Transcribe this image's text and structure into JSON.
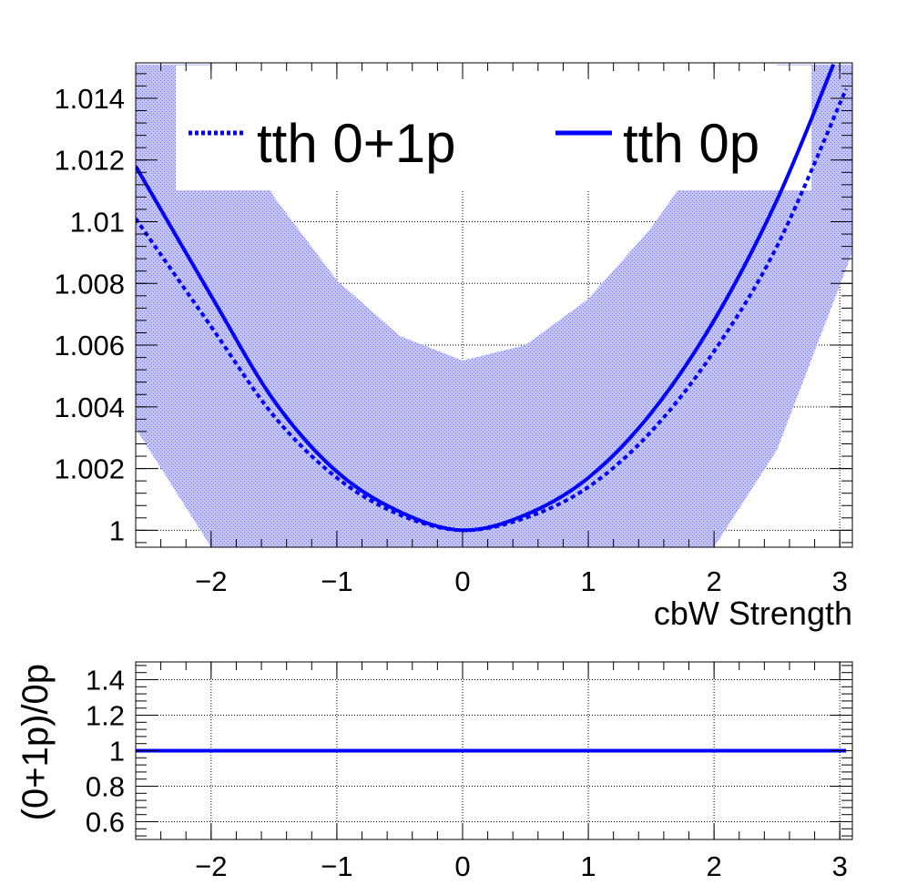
{
  "chart_data": [
    {
      "type": "line",
      "xlabel": "cbW Strength",
      "ylabel": "",
      "xlim": [
        -2.6,
        3.1
      ],
      "ylim": [
        0.99945,
        1.01515
      ],
      "x_ticks": [
        -2,
        -1,
        0,
        1,
        2,
        3
      ],
      "x_tick_labels": [
        "−2",
        "−1",
        "0",
        "1",
        "2",
        "3"
      ],
      "y_ticks": [
        1.0,
        1.002,
        1.004,
        1.006,
        1.008,
        1.01,
        1.012,
        1.014
      ],
      "y_tick_labels": [
        "1",
        "1.002",
        "1.004",
        "1.006",
        "1.008",
        "1.01",
        "1.012",
        "1.014"
      ],
      "grid": true,
      "legend_position": "top",
      "band_color": "#9999ee",
      "line_color": "#0000ff",
      "series": [
        {
          "name": "tth 0+1p",
          "style": "dotted",
          "x": [
            -2.6,
            -2.0,
            -1.5,
            -1.0,
            -0.5,
            0.0,
            0.5,
            1.0,
            1.5,
            2.0,
            2.5,
            3.05
          ],
          "y": [
            1.0101,
            1.0066,
            1.0037,
            1.0017,
            1.0005,
            1.0,
            1.0004,
            1.0014,
            1.0032,
            1.0058,
            1.0092,
            1.0143
          ]
        },
        {
          "name": "tth 0p",
          "style": "solid",
          "x": [
            -2.6,
            -2.0,
            -1.5,
            -1.0,
            -0.5,
            0.0,
            0.5,
            1.0,
            1.5,
            2.0,
            2.5,
            2.95
          ],
          "y": [
            1.0118,
            1.0076,
            1.0042,
            1.0019,
            1.0006,
            1.0,
            1.0005,
            1.0017,
            1.0038,
            1.0068,
            1.0107,
            1.0151
          ]
        }
      ],
      "band": {
        "x": [
          -2.6,
          -2.0,
          -1.5,
          -1.0,
          -0.5,
          0.0,
          0.5,
          1.0,
          1.5,
          2.0,
          2.5,
          3.1
        ],
        "upper": [
          1.0151,
          1.0151,
          1.0108,
          1.0081,
          1.0063,
          1.0055,
          1.006,
          1.0075,
          1.0098,
          1.0127,
          1.0151,
          1.0151
        ],
        "lower": [
          1.0033,
          0.99945,
          0.99945,
          0.99945,
          0.99945,
          0.99945,
          0.99945,
          0.99945,
          0.99945,
          0.99945,
          1.0026,
          1.009
        ]
      }
    },
    {
      "type": "line",
      "xlabel": "",
      "ylabel": "(0+1p)/0p",
      "xlim": [
        -2.6,
        3.1
      ],
      "ylim": [
        0.5,
        1.5
      ],
      "x_ticks": [
        -2,
        -1,
        0,
        1,
        2,
        3
      ],
      "x_tick_labels": [
        "−2",
        "−1",
        "0",
        "1",
        "2",
        "3"
      ],
      "y_ticks": [
        0.6,
        0.8,
        1.0,
        1.2,
        1.4
      ],
      "y_tick_labels": [
        "0.6",
        "0.8",
        "1",
        "1.2",
        "1.4"
      ],
      "grid": true,
      "line_color": "#0000ff",
      "series": [
        {
          "x": [
            -2.6,
            3.05
          ],
          "y": [
            1.0,
            1.0
          ]
        }
      ]
    }
  ]
}
